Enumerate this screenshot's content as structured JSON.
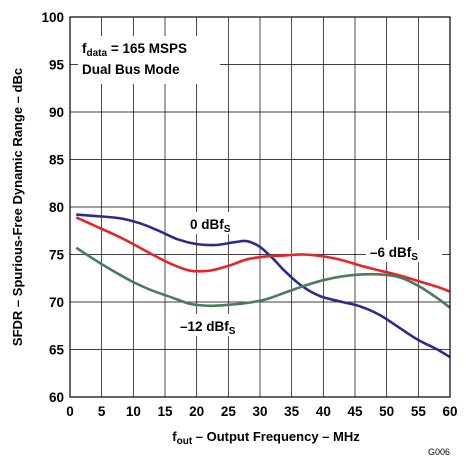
{
  "chart_data": {
    "type": "line",
    "xlabel_main": "f",
    "xlabel_sub": "out",
    "xlabel_rest": " – Output Frequency – MHz",
    "ylabel": "SFDR – Spurious-Free Dynamic Range – dBc",
    "xlim": [
      0,
      60
    ],
    "ylim": [
      60,
      100
    ],
    "x_ticks": [
      0,
      5,
      10,
      15,
      20,
      25,
      30,
      35,
      40,
      45,
      50,
      55,
      60
    ],
    "y_ticks": [
      60,
      65,
      70,
      75,
      80,
      85,
      90,
      95,
      100
    ],
    "grid": true,
    "annotation": {
      "line1_main": "f",
      "line1_sub": "data",
      "line1_rest": " = 165 MSPS",
      "line2": "Dual Bus Mode"
    },
    "figure_id": "G006",
    "series": [
      {
        "label_main": "0 dBf",
        "label_sub": "S",
        "color": "#2b2b8c",
        "x": [
          1,
          5,
          8,
          11,
          14,
          17,
          20,
          23,
          26,
          28,
          30,
          32,
          34,
          36,
          38,
          40,
          43,
          46,
          49,
          52,
          55,
          58,
          60
        ],
        "y": [
          79.2,
          79.0,
          78.8,
          78.3,
          77.5,
          76.6,
          76.1,
          76.0,
          76.3,
          76.4,
          75.8,
          74.6,
          73.2,
          72.0,
          71.1,
          70.5,
          70.0,
          69.5,
          68.6,
          67.3,
          66.0,
          65.0,
          64.2
        ]
      },
      {
        "label_main": "–6 dBf",
        "label_sub": "S",
        "color": "#e8242b",
        "x": [
          1,
          4,
          7,
          10,
          13,
          16,
          19,
          22,
          25,
          28,
          31,
          34,
          37,
          40,
          43,
          46,
          49,
          52,
          55,
          58,
          60
        ],
        "y": [
          78.9,
          78.0,
          77.1,
          76.1,
          75.0,
          74.0,
          73.3,
          73.3,
          73.8,
          74.5,
          74.8,
          74.9,
          75.0,
          74.8,
          74.4,
          73.8,
          73.3,
          72.8,
          72.2,
          71.6,
          71.1
        ]
      },
      {
        "label_main": "–12 dBf",
        "label_sub": "S",
        "color": "#4a7c5c",
        "x": [
          1,
          4,
          7,
          10,
          13,
          16,
          19,
          22,
          25,
          28,
          31,
          34,
          37,
          40,
          43,
          46,
          49,
          52,
          55,
          58,
          60
        ],
        "y": [
          75.7,
          74.4,
          73.2,
          72.1,
          71.2,
          70.5,
          69.8,
          69.6,
          69.7,
          69.9,
          70.3,
          71.0,
          71.7,
          72.3,
          72.7,
          72.9,
          72.9,
          72.6,
          71.7,
          70.4,
          69.4
        ]
      }
    ]
  }
}
